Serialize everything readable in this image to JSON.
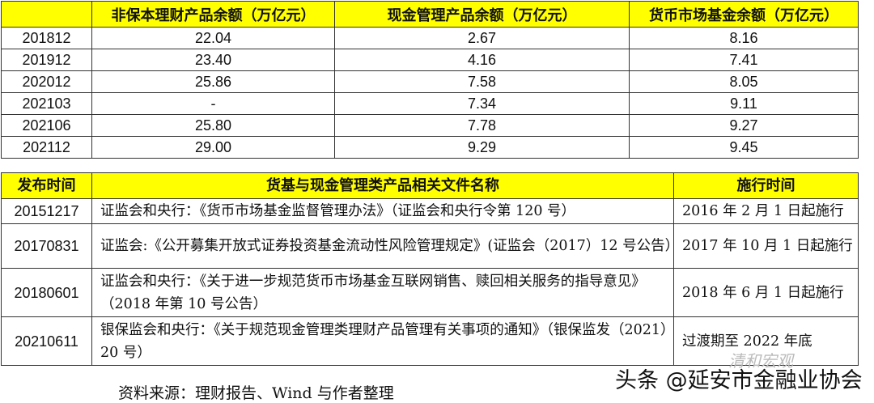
{
  "balance_table": {
    "headers": [
      "",
      "非保本理财产品余额（万亿元）",
      "现金管理产品余额（万亿元）",
      "货币市场基金余额（万亿元）"
    ],
    "rows": [
      [
        "201812",
        "22.04",
        "2.67",
        "8.16"
      ],
      [
        "201912",
        "23.40",
        "4.16",
        "7.41"
      ],
      [
        "202012",
        "25.86",
        "7.58",
        "8.05"
      ],
      [
        "202103",
        "-",
        "7.34",
        "9.11"
      ],
      [
        "202106",
        "25.80",
        "7.78",
        "9.27"
      ],
      [
        "202112",
        "29.00",
        "9.29",
        "9.45"
      ]
    ]
  },
  "docs_table": {
    "headers": [
      "发布时间",
      "货基与现金管理类产品相关文件名称",
      "施行时间"
    ],
    "rows": [
      [
        "20151217",
        "证监会和央行：《货币市场基金监督管理办法》（证监会和央行令第 120 号）",
        "2016 年 2 月 1 日起施行"
      ],
      [
        "20170831",
        "证监会:《公开募集开放式证券投资基金流动性风险管理规定》(证监会（2017）12 号公告）",
        "2017 年 10 月 1 日起施行"
      ],
      [
        "20180601",
        "证监会和央行：《关于进一步规范货币市场基金互联网销售、赎回相关服务的指导意见》（2018 年第 10 号公告）",
        "2018 年 6 月 1 日起施行"
      ],
      [
        "20210611",
        "银保监会和央行：《关于规范现金管理类理财产品管理有关事项的通知》（银保监发（2021）20 号）",
        "过渡期至 2022 年底"
      ]
    ]
  },
  "source": "资料来源：理财报告、Wind 与作者整理",
  "watermark": "头条 @延安市金融业协会",
  "watermark_faint": "清和宏观",
  "colors": {
    "header_bg": "#ffff00"
  }
}
